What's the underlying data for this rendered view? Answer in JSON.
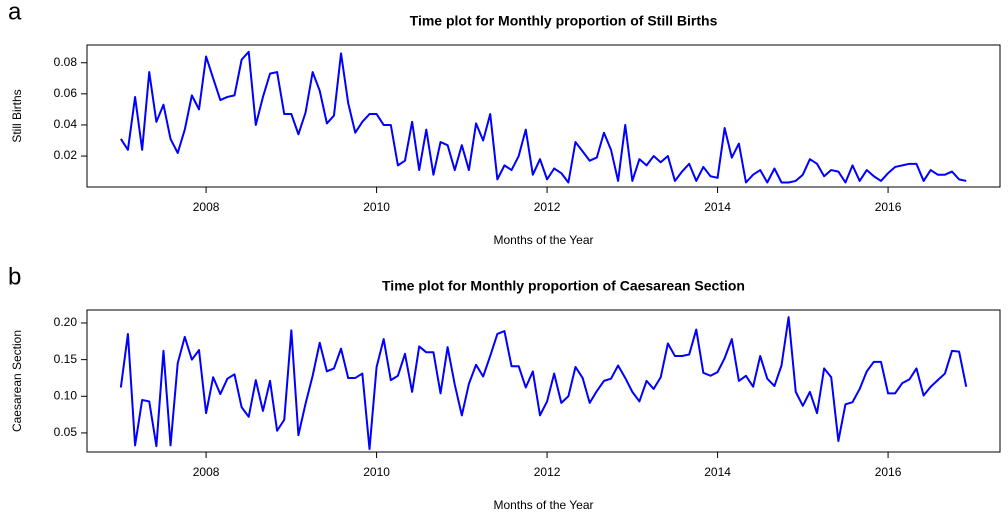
{
  "chart_data": [
    {
      "type": "line",
      "panel_label": "a",
      "title": "Time plot for Monthly proportion of Still Births",
      "x_label": "Months of the Year",
      "y_label": "Still Births",
      "xlim": [
        2006.603,
        2017.313
      ],
      "xticks": [
        2008,
        2010,
        2012,
        2014,
        2016
      ],
      "ylim": [
        0.0001,
        0.0914
      ],
      "yticks": [
        0.02,
        0.04,
        0.06,
        0.08
      ],
      "x": [
        2007,
        2007.083,
        2007.167,
        2007.25,
        2007.333,
        2007.417,
        2007.5,
        2007.583,
        2007.667,
        2007.75,
        2007.833,
        2007.917,
        2008,
        2008.083,
        2008.167,
        2008.25,
        2008.333,
        2008.417,
        2008.5,
        2008.583,
        2008.667,
        2008.75,
        2008.833,
        2008.917,
        2009,
        2009.083,
        2009.167,
        2009.25,
        2009.333,
        2009.417,
        2009.5,
        2009.583,
        2009.667,
        2009.75,
        2009.833,
        2009.917,
        2010,
        2010.083,
        2010.167,
        2010.25,
        2010.333,
        2010.417,
        2010.5,
        2010.583,
        2010.667,
        2010.75,
        2010.833,
        2010.917,
        2011,
        2011.083,
        2011.167,
        2011.25,
        2011.333,
        2011.417,
        2011.5,
        2011.583,
        2011.667,
        2011.75,
        2011.833,
        2011.917,
        2012,
        2012.083,
        2012.167,
        2012.25,
        2012.333,
        2012.417,
        2012.5,
        2012.583,
        2012.667,
        2012.75,
        2012.833,
        2012.917,
        2013,
        2013.083,
        2013.167,
        2013.25,
        2013.333,
        2013.417,
        2013.5,
        2013.583,
        2013.667,
        2013.75,
        2013.833,
        2013.917,
        2014,
        2014.083,
        2014.167,
        2014.25,
        2014.333,
        2014.417,
        2014.5,
        2014.583,
        2014.667,
        2014.75,
        2014.833,
        2014.917,
        2015,
        2015.083,
        2015.167,
        2015.25,
        2015.333,
        2015.417,
        2015.5,
        2015.583,
        2015.667,
        2015.75,
        2015.833,
        2015.917,
        2016,
        2016.083,
        2016.167,
        2016.25,
        2016.333,
        2016.417,
        2016.5,
        2016.583,
        2016.667,
        2016.75,
        2016.833,
        2016.917
      ],
      "series": [
        {
          "color": "#0000ff",
          "values": [
            0.031,
            0.024,
            0.058,
            0.024,
            0.074,
            0.042,
            0.053,
            0.031,
            0.022,
            0.037,
            0.059,
            0.05,
            0.084,
            0.07,
            0.056,
            0.058,
            0.059,
            0.082,
            0.087,
            0.04,
            0.058,
            0.073,
            0.074,
            0.047,
            0.047,
            0.034,
            0.048,
            0.074,
            0.062,
            0.041,
            0.046,
            0.086,
            0.054,
            0.035,
            0.042,
            0.047,
            0.047,
            0.04,
            0.04,
            0.014,
            0.017,
            0.042,
            0.011,
            0.037,
            0.008,
            0.029,
            0.027,
            0.011,
            0.027,
            0.011,
            0.041,
            0.03,
            0.047,
            0.005,
            0.014,
            0.011,
            0.02,
            0.037,
            0.008,
            0.018,
            0.005,
            0.012,
            0.009,
            0.003,
            0.029,
            0.023,
            0.017,
            0.019,
            0.035,
            0.024,
            0.004,
            0.04,
            0.004,
            0.018,
            0.014,
            0.02,
            0.016,
            0.02,
            0.004,
            0.01,
            0.015,
            0.004,
            0.013,
            0.007,
            0.006,
            0.038,
            0.019,
            0.028,
            0.003,
            0.008,
            0.011,
            0.003,
            0.012,
            0.003,
            0.003,
            0.004,
            0.008,
            0.018,
            0.015,
            0.007,
            0.011,
            0.01,
            0.003,
            0.014,
            0.004,
            0.011,
            0.007,
            0.004,
            0.009,
            0.013,
            0.014,
            0.015,
            0.015,
            0.004,
            0.011,
            0.008,
            0.008,
            0.01,
            0.005,
            0.004
          ]
        }
      ]
    },
    {
      "type": "line",
      "panel_label": "b",
      "title": "Time plot for Monthly proportion of Caesarean Section",
      "x_label": "Months of the Year",
      "y_label": "Caesarean Section",
      "xlim": [
        2006.603,
        2017.313
      ],
      "xticks": [
        2008,
        2010,
        2012,
        2014,
        2016
      ],
      "ylim": [
        0.024,
        0.2177
      ],
      "yticks": [
        0.05,
        {
          "value": 0.1,
          "label": "0.10"
        },
        0.15,
        {
          "value": 0.2,
          "label": "0.20"
        }
      ],
      "x": [
        2007,
        2007.083,
        2007.167,
        2007.25,
        2007.333,
        2007.417,
        2007.5,
        2007.583,
        2007.667,
        2007.75,
        2007.833,
        2007.917,
        2008,
        2008.083,
        2008.167,
        2008.25,
        2008.333,
        2008.417,
        2008.5,
        2008.583,
        2008.667,
        2008.75,
        2008.833,
        2008.917,
        2009,
        2009.083,
        2009.167,
        2009.25,
        2009.333,
        2009.417,
        2009.5,
        2009.583,
        2009.667,
        2009.75,
        2009.833,
        2009.917,
        2010,
        2010.083,
        2010.167,
        2010.25,
        2010.333,
        2010.417,
        2010.5,
        2010.583,
        2010.667,
        2010.75,
        2010.833,
        2010.917,
        2011,
        2011.083,
        2011.167,
        2011.25,
        2011.333,
        2011.417,
        2011.5,
        2011.583,
        2011.667,
        2011.75,
        2011.833,
        2011.917,
        2012,
        2012.083,
        2012.167,
        2012.25,
        2012.333,
        2012.417,
        2012.5,
        2012.583,
        2012.667,
        2012.75,
        2012.833,
        2012.917,
        2013,
        2013.083,
        2013.167,
        2013.25,
        2013.333,
        2013.417,
        2013.5,
        2013.583,
        2013.667,
        2013.75,
        2013.833,
        2013.917,
        2014,
        2014.083,
        2014.167,
        2014.25,
        2014.333,
        2014.417,
        2014.5,
        2014.583,
        2014.667,
        2014.75,
        2014.833,
        2014.917,
        2015,
        2015.083,
        2015.167,
        2015.25,
        2015.333,
        2015.417,
        2015.5,
        2015.583,
        2015.667,
        2015.75,
        2015.833,
        2015.917,
        2016,
        2016.083,
        2016.167,
        2016.25,
        2016.333,
        2016.417,
        2016.5,
        2016.583,
        2016.667,
        2016.75,
        2016.833,
        2016.917
      ],
      "series": [
        {
          "color": "#0000ff",
          "values": [
            0.112,
            0.185,
            0.033,
            0.095,
            0.093,
            0.032,
            0.162,
            0.033,
            0.145,
            0.181,
            0.15,
            0.163,
            0.077,
            0.126,
            0.103,
            0.124,
            0.13,
            0.085,
            0.072,
            0.122,
            0.08,
            0.121,
            0.053,
            0.068,
            0.19,
            0.047,
            0.09,
            0.128,
            0.173,
            0.134,
            0.138,
            0.165,
            0.125,
            0.125,
            0.131,
            0.028,
            0.14,
            0.178,
            0.122,
            0.128,
            0.158,
            0.106,
            0.168,
            0.16,
            0.16,
            0.104,
            0.167,
            0.116,
            0.074,
            0.117,
            0.143,
            0.127,
            0.155,
            0.185,
            0.189,
            0.141,
            0.141,
            0.112,
            0.134,
            0.074,
            0.093,
            0.131,
            0.091,
            0.1,
            0.14,
            0.125,
            0.091,
            0.107,
            0.121,
            0.124,
            0.142,
            0.125,
            0.106,
            0.093,
            0.121,
            0.11,
            0.126,
            0.172,
            0.155,
            0.155,
            0.157,
            0.191,
            0.132,
            0.128,
            0.133,
            0.152,
            0.178,
            0.121,
            0.128,
            0.113,
            0.155,
            0.124,
            0.114,
            0.142,
            0.208,
            0.106,
            0.087,
            0.106,
            0.077,
            0.138,
            0.126,
            0.039,
            0.089,
            0.092,
            0.11,
            0.134,
            0.147,
            0.147,
            0.104,
            0.104,
            0.118,
            0.123,
            0.138,
            0.101,
            0.113,
            0.122,
            0.131,
            0.162,
            0.161,
            0.113
          ]
        }
      ]
    }
  ]
}
